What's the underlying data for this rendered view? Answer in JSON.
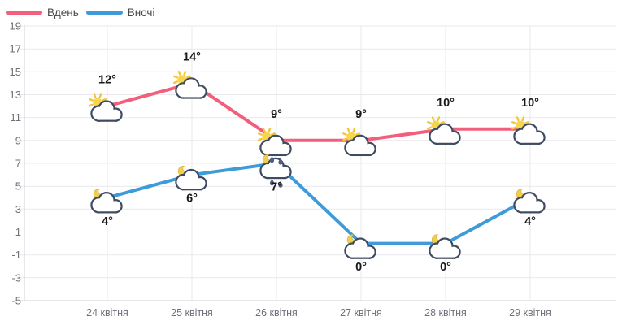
{
  "legend": {
    "items": [
      {
        "label": "Вдень",
        "color": "#F15F7C"
      },
      {
        "label": "Вночі",
        "color": "#3E9BD9"
      }
    ]
  },
  "chart_data": {
    "type": "line",
    "x": [
      "24 квітня",
      "25 квітня",
      "26 квітня",
      "27 квітня",
      "28 квітня",
      "29 квітня"
    ],
    "series": [
      {
        "name": "Вдень",
        "color": "#F15F7C",
        "values": [
          12,
          14,
          9,
          9,
          10,
          10
        ],
        "point_labels": [
          "12°",
          "14°",
          "9°",
          "9°",
          "10°",
          "10°"
        ],
        "icons": [
          "sun-cloud",
          "sun-cloud",
          "sun-cloud-rain",
          "sun-cloud",
          "sun-cloud",
          "sun-cloud"
        ],
        "label_placement": "above"
      },
      {
        "name": "Вночі",
        "color": "#3E9BD9",
        "values": [
          4,
          6,
          7,
          0,
          0,
          4
        ],
        "point_labels": [
          "4°",
          "6°",
          "7°",
          "0°",
          "0°",
          "4°"
        ],
        "icons": [
          "moon-cloud",
          "moon-cloud",
          "moon-cloud-rain",
          "moon-cloud",
          "moon-cloud",
          "moon-cloud"
        ],
        "label_placement": "below"
      }
    ],
    "y_ticks": [
      19,
      17,
      15,
      13,
      11,
      9,
      7,
      5,
      3,
      1,
      -1,
      -3,
      -5
    ],
    "ylim": [
      -5,
      19
    ],
    "grid": true,
    "legend_position": "top-left"
  },
  "colors": {
    "background": "#FFFFFF",
    "grid": "#E9E9ED",
    "axis": "#CDD0D6",
    "tick_text": "#6E7278",
    "temp_text": "#17181A",
    "cloud_outline": "#3E4B61",
    "cloud_fill": "#FFFFFF",
    "sun": "#F8D64B",
    "sun_rays": "#F3C53A",
    "moon": "#F2CE4D",
    "moon_outline": "#DFAF35",
    "raindrop": "#4F5E80"
  }
}
